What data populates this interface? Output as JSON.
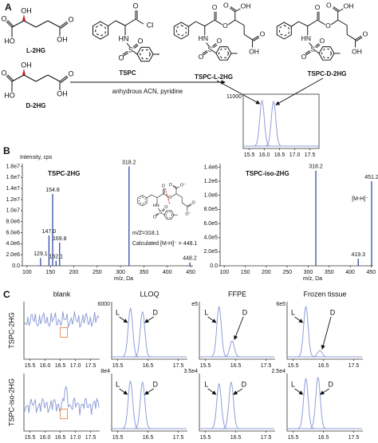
{
  "panel_a": {
    "label": "A",
    "molecules": [
      {
        "name": "L-2HG",
        "atoms": [
          "O",
          "HO",
          "OH",
          "O",
          "OH"
        ]
      },
      {
        "name": "D-2HG",
        "atoms": [
          "O",
          "HO",
          "OH",
          "O",
          "OH"
        ]
      },
      {
        "name": "TSPC",
        "atoms": [
          "O",
          "Cl",
          "HN",
          "S",
          "O",
          "O"
        ]
      },
      {
        "name": "TSPC-L-2HG",
        "atoms": [
          "O",
          "O",
          "HN",
          "S",
          "O",
          "O",
          "O",
          "OH",
          "O",
          "OH"
        ]
      },
      {
        "name": "TSPC-D-2HG",
        "atoms": [
          "O",
          "O",
          "HN",
          "S",
          "O",
          "O",
          "O",
          "OH",
          "O",
          "OH"
        ]
      }
    ],
    "condition": "anhydrous ACN, pyridine",
    "chromatogram": {
      "y_label": "11000",
      "xlim": [
        15.3,
        17.8
      ],
      "xticks": [
        15.5,
        {
          "value": 16,
          "label": "16.0"
        },
        16.5,
        {
          "value": 17,
          "label": "17.0"
        },
        17.5
      ],
      "peaks": [
        {
          "rt": 15.92,
          "height": 0.92
        },
        {
          "rt": 16.3,
          "height": 0.9
        }
      ]
    }
  },
  "panel_b": {
    "label": "B",
    "spectra": [
      {
        "title": "TSPC-2HG",
        "y_label": "Intensity, cps",
        "x_label": "m/z, Da",
        "xlim": [
          90,
          455
        ],
        "xticks": [
          100,
          150,
          200,
          250,
          300,
          350,
          400,
          450
        ],
        "ylim": [
          0,
          18500000
        ],
        "yticks": [
          {
            "value": 0,
            "label": "0.0"
          },
          {
            "value": 2000000,
            "label": "2.0e6"
          },
          {
            "value": 4000000,
            "label": "4.0e6"
          },
          {
            "value": 6000000,
            "label": "6.0e6"
          },
          {
            "value": 8000000,
            "label": "8.0e6"
          },
          {
            "value": 10000000,
            "label": "1.0e7"
          },
          {
            "value": 12000000,
            "label": "1.2e7"
          },
          {
            "value": 14000000,
            "label": "1.4e7"
          },
          {
            "value": 16000000,
            "label": "1.6e7"
          },
          {
            "value": 18000000,
            "label": "1.8e7"
          }
        ],
        "peaks": [
          {
            "mz": 318.2,
            "intensity": 18000000
          },
          {
            "mz": 154.8,
            "intensity": 13000000
          },
          {
            "mz": 147,
            "label": "147.0",
            "intensity": 5500000
          },
          {
            "mz": 169.8,
            "intensity": 4200000
          },
          {
            "mz": 129.1,
            "intensity": 1400000
          },
          {
            "mz": 162.1,
            "intensity": 900000
          },
          {
            "mz": 448.2,
            "intensity": 600000
          }
        ]
      },
      {
        "title": "TSPC-iso-2HG",
        "x_label": "m/z, Da",
        "annotation": "[M-H]⁻",
        "xlim": [
          90,
          455
        ],
        "xticks": [
          100,
          150,
          200,
          250,
          300,
          350,
          400,
          450
        ],
        "ylim": [
          0,
          1450000
        ],
        "yticks": [
          {
            "value": 0,
            "label": "0.0"
          },
          {
            "value": 200000,
            "label": "2.0e5"
          },
          {
            "value": 400000,
            "label": "4.0e5"
          },
          {
            "value": 600000,
            "label": "6.0e5"
          },
          {
            "value": 800000,
            "label": "8.0e5"
          },
          {
            "value": 1000000,
            "label": "1.0e6"
          },
          {
            "value": 1200000,
            "label": "1.2e6"
          },
          {
            "value": 1400000,
            "label": "1.4e6"
          }
        ],
        "peaks": [
          {
            "mz": 318.2,
            "intensity": 1350000
          },
          {
            "mz": 451.2,
            "intensity": 1200000
          },
          {
            "mz": 419.3,
            "intensity": 100000
          }
        ]
      }
    ],
    "inset": {
      "atoms": [
        "O",
        "O",
        "HN",
        "S",
        "O",
        "O",
        "O",
        "O⁻",
        "O",
        "O⁻"
      ],
      "fragment": "m/Z=318.1",
      "calculated": "Calculated [M-H]⁻ = 448.1"
    }
  },
  "panel_c": {
    "label": "C",
    "columns": [
      "blank",
      "LLOQ",
      "FFPE",
      "Frozen tissue"
    ],
    "rows": [
      "TSPC-2HG",
      "TSPC-iso-2HG"
    ],
    "peak_names": [
      "L",
      "D"
    ],
    "xlim": [
      15.3,
      17.8
    ],
    "cells": [
      [
        {
          "xticks": [
            15.5,
            {
              "value": 16,
              "label": "16.0"
            },
            16.5,
            {
              "value": 17,
              "label": "17.0"
            },
            17.5
          ]
        },
        {
          "y_label": "6000",
          "xticks": [
            15.5,
            16.5,
            17.5
          ],
          "peaks": [
            {
              "rt": 15.92,
              "height": 0.92
            },
            {
              "rt": 16.32,
              "height": 0.85
            }
          ]
        },
        {
          "y_label": "e5",
          "xticks": [
            15.5,
            16.5,
            17.5
          ],
          "peaks": [
            {
              "rt": 15.95,
              "height": 0.95
            },
            {
              "rt": 16.38,
              "height": 0.3
            }
          ]
        },
        {
          "y_label": "6e5",
          "xticks": [
            15.5,
            16.5,
            17.5
          ],
          "peaks": [
            {
              "rt": 15.92,
              "height": 0.95
            },
            {
              "rt": 16.38,
              "height": 0.12
            }
          ]
        }
      ],
      [
        {
          "xticks": [
            15.5,
            {
              "value": 16,
              "label": "16.0"
            },
            16.5,
            {
              "value": 17,
              "label": "17.0"
            },
            17.5
          ]
        },
        {
          "y_label": "8e4",
          "xticks": [
            15.5,
            16.5,
            17.5
          ],
          "peaks": [
            {
              "rt": 15.92,
              "height": 0.9
            },
            {
              "rt": 16.32,
              "height": 0.88
            }
          ]
        },
        {
          "y_label": "3.5e4",
          "xticks": [
            15.5,
            16.5,
            17.5
          ],
          "peaks": [
            {
              "rt": 15.95,
              "height": 0.85
            },
            {
              "rt": 16.35,
              "height": 0.88
            }
          ]
        },
        {
          "y_label": "2.5e4",
          "xticks": [
            15.5,
            16.5,
            17.5
          ],
          "peaks": [
            {
              "rt": 15.92,
              "height": 0.95
            },
            {
              "rt": 16.32,
              "height": 0.97
            }
          ]
        }
      ]
    ]
  }
}
